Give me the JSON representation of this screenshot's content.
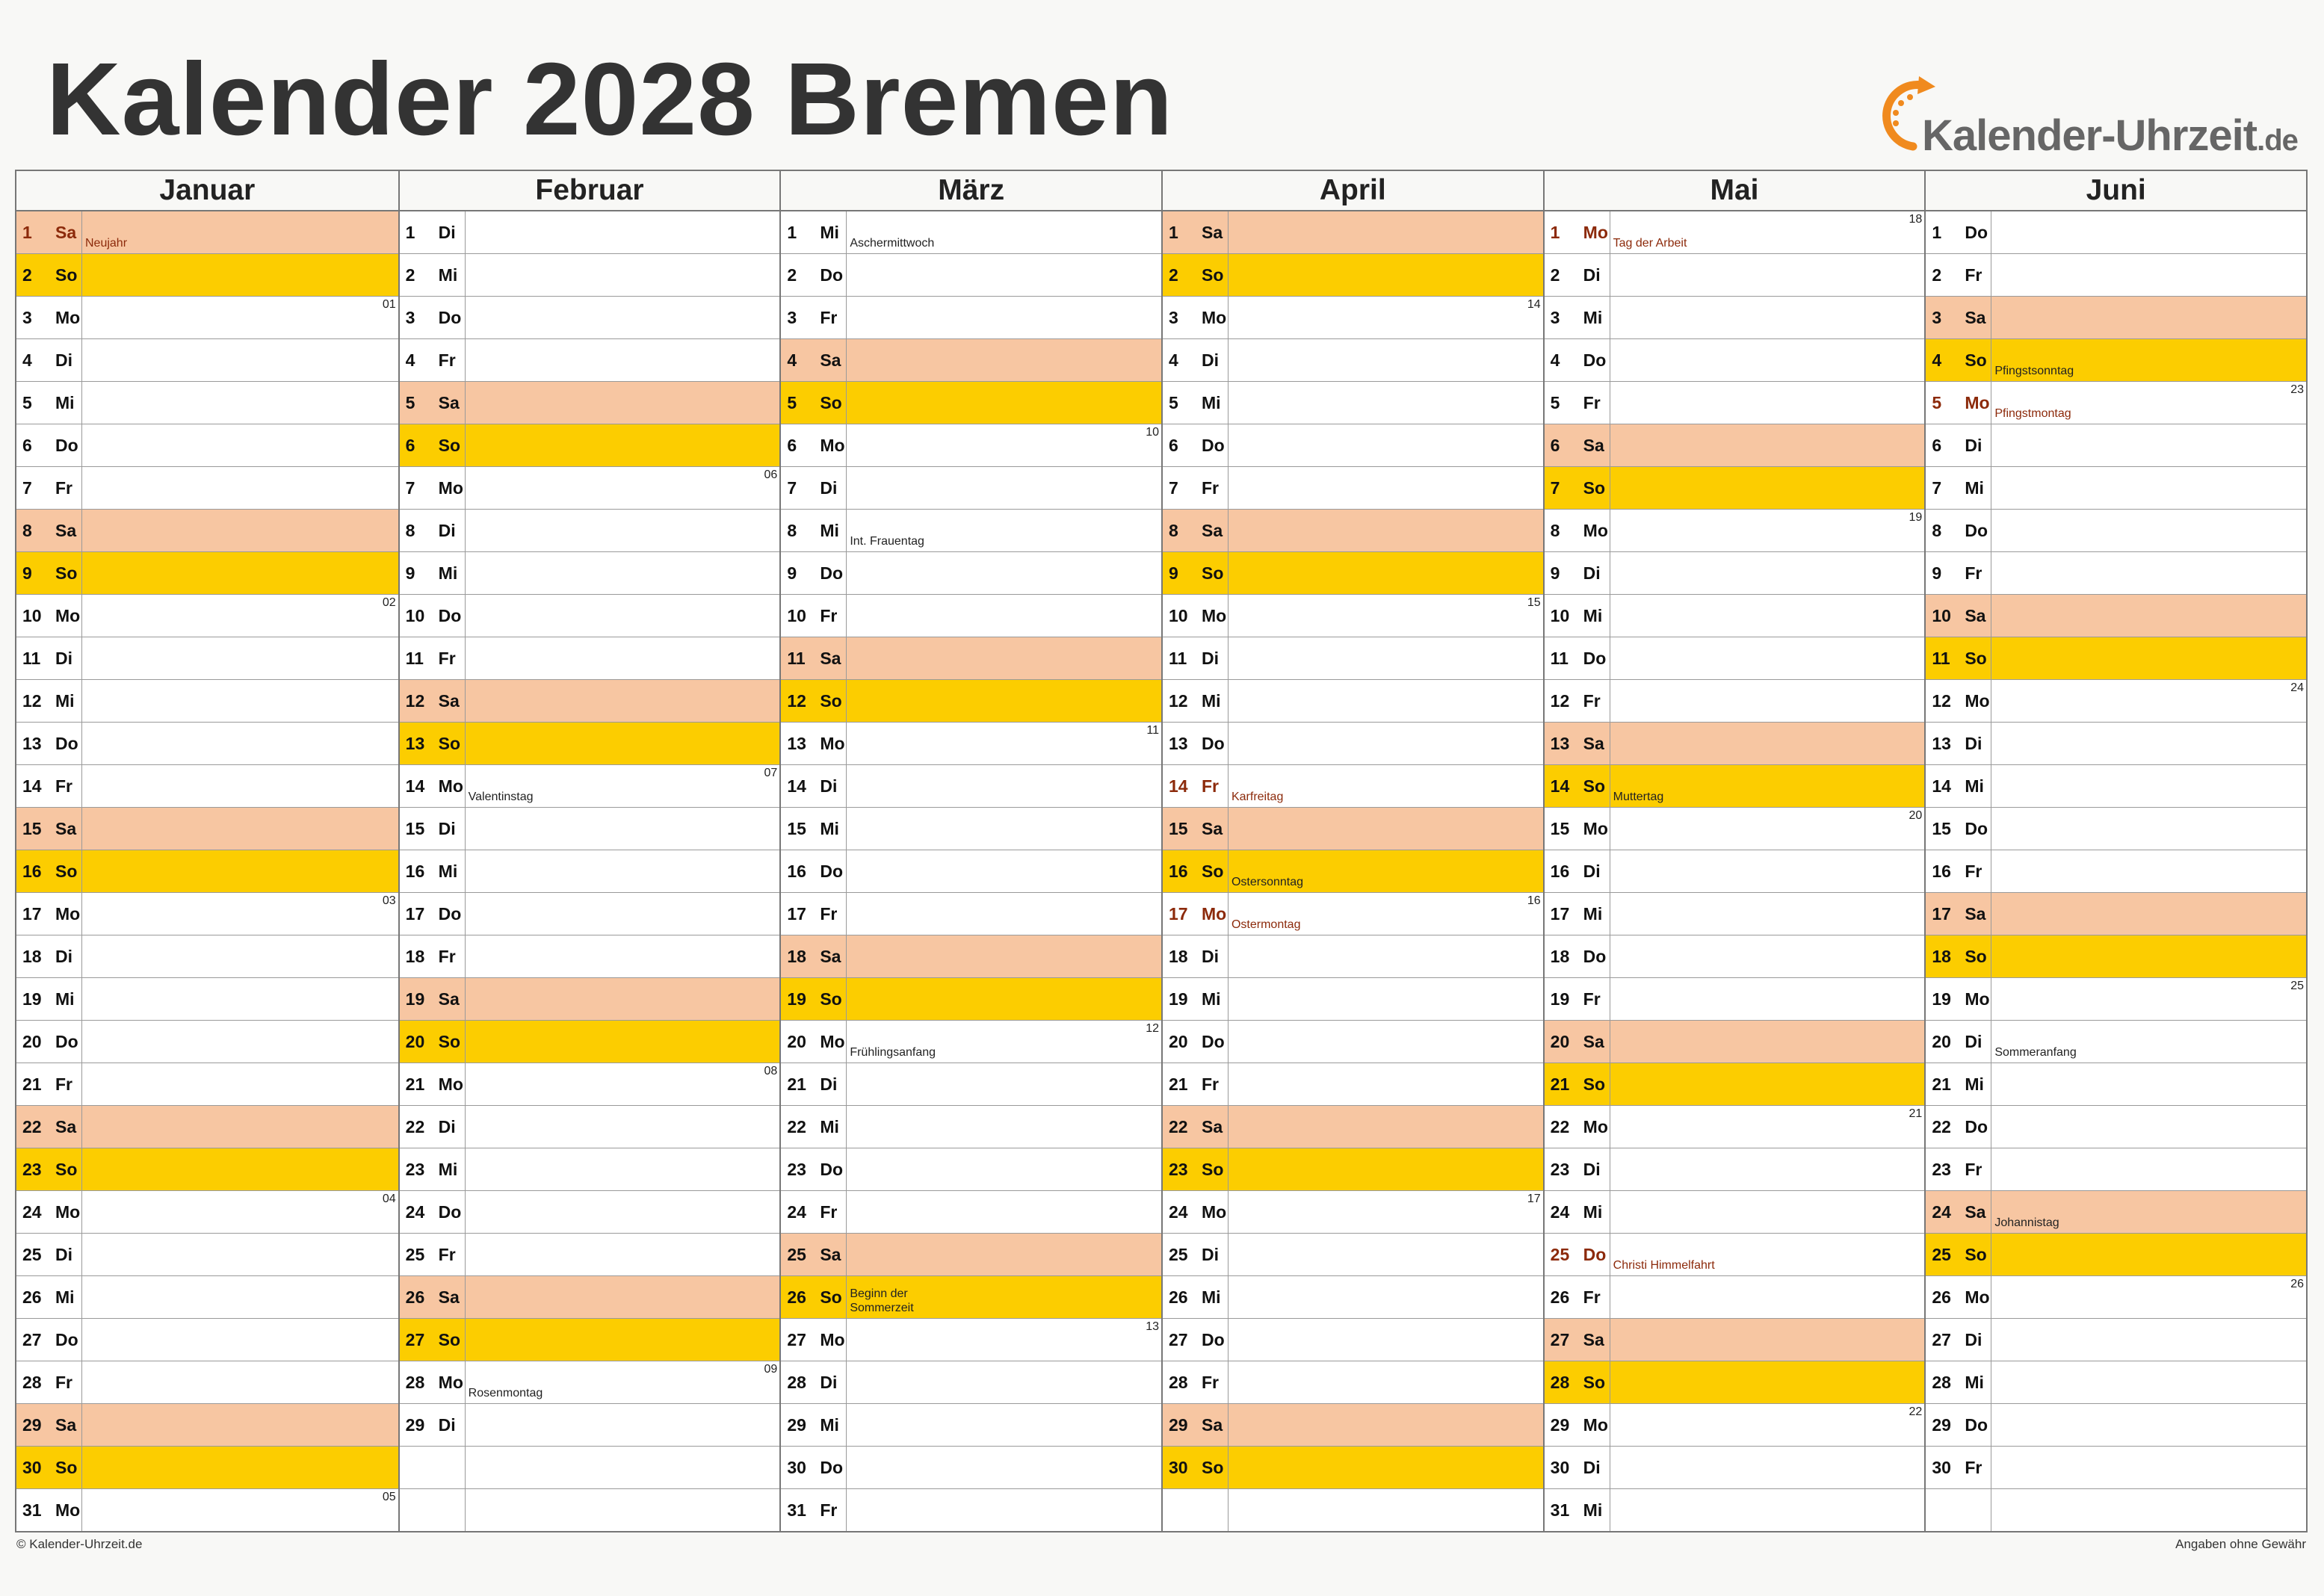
{
  "title": "Kalender 2028 Bremen",
  "logo": {
    "name": "Kalender-Uhrzeit",
    "tld": ".de"
  },
  "footer": {
    "left": "© Kalender-Uhrzeit.de",
    "right": "Angaben ohne Gewähr"
  },
  "colors": {
    "saturday": "#f7c6a2",
    "sunday": "#fccd00",
    "holiday_text": "#8c2a0b",
    "logo_orange": "#f08a1e"
  },
  "months": [
    {
      "name": "Januar",
      "days": [
        {
          "d": "1",
          "wd": "Sa",
          "type": "sat",
          "hol": true,
          "note": "Neujahr"
        },
        {
          "d": "2",
          "wd": "So",
          "type": "sun"
        },
        {
          "d": "3",
          "wd": "Mo",
          "kw": "01"
        },
        {
          "d": "4",
          "wd": "Di"
        },
        {
          "d": "5",
          "wd": "Mi"
        },
        {
          "d": "6",
          "wd": "Do"
        },
        {
          "d": "7",
          "wd": "Fr"
        },
        {
          "d": "8",
          "wd": "Sa",
          "type": "sat"
        },
        {
          "d": "9",
          "wd": "So",
          "type": "sun"
        },
        {
          "d": "10",
          "wd": "Mo",
          "kw": "02"
        },
        {
          "d": "11",
          "wd": "Di"
        },
        {
          "d": "12",
          "wd": "Mi"
        },
        {
          "d": "13",
          "wd": "Do"
        },
        {
          "d": "14",
          "wd": "Fr"
        },
        {
          "d": "15",
          "wd": "Sa",
          "type": "sat"
        },
        {
          "d": "16",
          "wd": "So",
          "type": "sun"
        },
        {
          "d": "17",
          "wd": "Mo",
          "kw": "03"
        },
        {
          "d": "18",
          "wd": "Di"
        },
        {
          "d": "19",
          "wd": "Mi"
        },
        {
          "d": "20",
          "wd": "Do"
        },
        {
          "d": "21",
          "wd": "Fr"
        },
        {
          "d": "22",
          "wd": "Sa",
          "type": "sat"
        },
        {
          "d": "23",
          "wd": "So",
          "type": "sun"
        },
        {
          "d": "24",
          "wd": "Mo",
          "kw": "04"
        },
        {
          "d": "25",
          "wd": "Di"
        },
        {
          "d": "26",
          "wd": "Mi"
        },
        {
          "d": "27",
          "wd": "Do"
        },
        {
          "d": "28",
          "wd": "Fr"
        },
        {
          "d": "29",
          "wd": "Sa",
          "type": "sat"
        },
        {
          "d": "30",
          "wd": "So",
          "type": "sun"
        },
        {
          "d": "31",
          "wd": "Mo",
          "kw": "05"
        }
      ]
    },
    {
      "name": "Februar",
      "days": [
        {
          "d": "1",
          "wd": "Di"
        },
        {
          "d": "2",
          "wd": "Mi"
        },
        {
          "d": "3",
          "wd": "Do"
        },
        {
          "d": "4",
          "wd": "Fr"
        },
        {
          "d": "5",
          "wd": "Sa",
          "type": "sat"
        },
        {
          "d": "6",
          "wd": "So",
          "type": "sun"
        },
        {
          "d": "7",
          "wd": "Mo",
          "kw": "06"
        },
        {
          "d": "8",
          "wd": "Di"
        },
        {
          "d": "9",
          "wd": "Mi"
        },
        {
          "d": "10",
          "wd": "Do"
        },
        {
          "d": "11",
          "wd": "Fr"
        },
        {
          "d": "12",
          "wd": "Sa",
          "type": "sat"
        },
        {
          "d": "13",
          "wd": "So",
          "type": "sun"
        },
        {
          "d": "14",
          "wd": "Mo",
          "kw": "07",
          "note": "Valentinstag"
        },
        {
          "d": "15",
          "wd": "Di"
        },
        {
          "d": "16",
          "wd": "Mi"
        },
        {
          "d": "17",
          "wd": "Do"
        },
        {
          "d": "18",
          "wd": "Fr"
        },
        {
          "d": "19",
          "wd": "Sa",
          "type": "sat"
        },
        {
          "d": "20",
          "wd": "So",
          "type": "sun"
        },
        {
          "d": "21",
          "wd": "Mo",
          "kw": "08"
        },
        {
          "d": "22",
          "wd": "Di"
        },
        {
          "d": "23",
          "wd": "Mi"
        },
        {
          "d": "24",
          "wd": "Do"
        },
        {
          "d": "25",
          "wd": "Fr"
        },
        {
          "d": "26",
          "wd": "Sa",
          "type": "sat"
        },
        {
          "d": "27",
          "wd": "So",
          "type": "sun"
        },
        {
          "d": "28",
          "wd": "Mo",
          "kw": "09",
          "note": "Rosenmontag"
        },
        {
          "d": "29",
          "wd": "Di"
        },
        {
          "d": "",
          "wd": "",
          "type": "empty"
        },
        {
          "d": "",
          "wd": "",
          "type": "empty"
        }
      ]
    },
    {
      "name": "März",
      "days": [
        {
          "d": "1",
          "wd": "Mi",
          "note": "Aschermittwoch"
        },
        {
          "d": "2",
          "wd": "Do"
        },
        {
          "d": "3",
          "wd": "Fr"
        },
        {
          "d": "4",
          "wd": "Sa",
          "type": "sat"
        },
        {
          "d": "5",
          "wd": "So",
          "type": "sun"
        },
        {
          "d": "6",
          "wd": "Mo",
          "kw": "10"
        },
        {
          "d": "7",
          "wd": "Di"
        },
        {
          "d": "8",
          "wd": "Mi",
          "note": "Int. Frauentag"
        },
        {
          "d": "9",
          "wd": "Do"
        },
        {
          "d": "10",
          "wd": "Fr"
        },
        {
          "d": "11",
          "wd": "Sa",
          "type": "sat"
        },
        {
          "d": "12",
          "wd": "So",
          "type": "sun"
        },
        {
          "d": "13",
          "wd": "Mo",
          "kw": "11"
        },
        {
          "d": "14",
          "wd": "Di"
        },
        {
          "d": "15",
          "wd": "Mi"
        },
        {
          "d": "16",
          "wd": "Do"
        },
        {
          "d": "17",
          "wd": "Fr"
        },
        {
          "d": "18",
          "wd": "Sa",
          "type": "sat"
        },
        {
          "d": "19",
          "wd": "So",
          "type": "sun"
        },
        {
          "d": "20",
          "wd": "Mo",
          "kw": "12",
          "note": "Frühlingsanfang"
        },
        {
          "d": "21",
          "wd": "Di"
        },
        {
          "d": "22",
          "wd": "Mi"
        },
        {
          "d": "23",
          "wd": "Do"
        },
        {
          "d": "24",
          "wd": "Fr"
        },
        {
          "d": "25",
          "wd": "Sa",
          "type": "sat"
        },
        {
          "d": "26",
          "wd": "So",
          "type": "sun",
          "note": "Beginn der Sommerzeit",
          "two": true
        },
        {
          "d": "27",
          "wd": "Mo",
          "kw": "13"
        },
        {
          "d": "28",
          "wd": "Di"
        },
        {
          "d": "29",
          "wd": "Mi"
        },
        {
          "d": "30",
          "wd": "Do"
        },
        {
          "d": "31",
          "wd": "Fr"
        }
      ]
    },
    {
      "name": "April",
      "days": [
        {
          "d": "1",
          "wd": "Sa",
          "type": "sat"
        },
        {
          "d": "2",
          "wd": "So",
          "type": "sun"
        },
        {
          "d": "3",
          "wd": "Mo",
          "kw": "14"
        },
        {
          "d": "4",
          "wd": "Di"
        },
        {
          "d": "5",
          "wd": "Mi"
        },
        {
          "d": "6",
          "wd": "Do"
        },
        {
          "d": "7",
          "wd": "Fr"
        },
        {
          "d": "8",
          "wd": "Sa",
          "type": "sat"
        },
        {
          "d": "9",
          "wd": "So",
          "type": "sun"
        },
        {
          "d": "10",
          "wd": "Mo",
          "kw": "15"
        },
        {
          "d": "11",
          "wd": "Di"
        },
        {
          "d": "12",
          "wd": "Mi"
        },
        {
          "d": "13",
          "wd": "Do"
        },
        {
          "d": "14",
          "wd": "Fr",
          "hol": true,
          "note": "Karfreitag"
        },
        {
          "d": "15",
          "wd": "Sa",
          "type": "sat"
        },
        {
          "d": "16",
          "wd": "So",
          "type": "sun",
          "note": "Ostersonntag"
        },
        {
          "d": "17",
          "wd": "Mo",
          "kw": "16",
          "hol": true,
          "note": "Ostermontag"
        },
        {
          "d": "18",
          "wd": "Di"
        },
        {
          "d": "19",
          "wd": "Mi"
        },
        {
          "d": "20",
          "wd": "Do"
        },
        {
          "d": "21",
          "wd": "Fr"
        },
        {
          "d": "22",
          "wd": "Sa",
          "type": "sat"
        },
        {
          "d": "23",
          "wd": "So",
          "type": "sun"
        },
        {
          "d": "24",
          "wd": "Mo",
          "kw": "17"
        },
        {
          "d": "25",
          "wd": "Di"
        },
        {
          "d": "26",
          "wd": "Mi"
        },
        {
          "d": "27",
          "wd": "Do"
        },
        {
          "d": "28",
          "wd": "Fr"
        },
        {
          "d": "29",
          "wd": "Sa",
          "type": "sat"
        },
        {
          "d": "30",
          "wd": "So",
          "type": "sun"
        },
        {
          "d": "",
          "wd": "",
          "type": "empty"
        }
      ]
    },
    {
      "name": "Mai",
      "days": [
        {
          "d": "1",
          "wd": "Mo",
          "kw": "18",
          "hol": true,
          "note": "Tag der Arbeit"
        },
        {
          "d": "2",
          "wd": "Di"
        },
        {
          "d": "3",
          "wd": "Mi"
        },
        {
          "d": "4",
          "wd": "Do"
        },
        {
          "d": "5",
          "wd": "Fr"
        },
        {
          "d": "6",
          "wd": "Sa",
          "type": "sat"
        },
        {
          "d": "7",
          "wd": "So",
          "type": "sun"
        },
        {
          "d": "8",
          "wd": "Mo",
          "kw": "19"
        },
        {
          "d": "9",
          "wd": "Di"
        },
        {
          "d": "10",
          "wd": "Mi"
        },
        {
          "d": "11",
          "wd": "Do"
        },
        {
          "d": "12",
          "wd": "Fr"
        },
        {
          "d": "13",
          "wd": "Sa",
          "type": "sat"
        },
        {
          "d": "14",
          "wd": "So",
          "type": "sun",
          "note": "Muttertag"
        },
        {
          "d": "15",
          "wd": "Mo",
          "kw": "20"
        },
        {
          "d": "16",
          "wd": "Di"
        },
        {
          "d": "17",
          "wd": "Mi"
        },
        {
          "d": "18",
          "wd": "Do"
        },
        {
          "d": "19",
          "wd": "Fr"
        },
        {
          "d": "20",
          "wd": "Sa",
          "type": "sat"
        },
        {
          "d": "21",
          "wd": "So",
          "type": "sun"
        },
        {
          "d": "22",
          "wd": "Mo",
          "kw": "21"
        },
        {
          "d": "23",
          "wd": "Di"
        },
        {
          "d": "24",
          "wd": "Mi"
        },
        {
          "d": "25",
          "wd": "Do",
          "hol": true,
          "note": "Christi Himmelfahrt"
        },
        {
          "d": "26",
          "wd": "Fr"
        },
        {
          "d": "27",
          "wd": "Sa",
          "type": "sat"
        },
        {
          "d": "28",
          "wd": "So",
          "type": "sun"
        },
        {
          "d": "29",
          "wd": "Mo",
          "kw": "22"
        },
        {
          "d": "30",
          "wd": "Di"
        },
        {
          "d": "31",
          "wd": "Mi"
        }
      ]
    },
    {
      "name": "Juni",
      "days": [
        {
          "d": "1",
          "wd": "Do"
        },
        {
          "d": "2",
          "wd": "Fr"
        },
        {
          "d": "3",
          "wd": "Sa",
          "type": "sat"
        },
        {
          "d": "4",
          "wd": "So",
          "type": "sun",
          "note": "Pfingstsonntag"
        },
        {
          "d": "5",
          "wd": "Mo",
          "kw": "23",
          "hol": true,
          "note": "Pfingstmontag"
        },
        {
          "d": "6",
          "wd": "Di"
        },
        {
          "d": "7",
          "wd": "Mi"
        },
        {
          "d": "8",
          "wd": "Do"
        },
        {
          "d": "9",
          "wd": "Fr"
        },
        {
          "d": "10",
          "wd": "Sa",
          "type": "sat"
        },
        {
          "d": "11",
          "wd": "So",
          "type": "sun"
        },
        {
          "d": "12",
          "wd": "Mo",
          "kw": "24"
        },
        {
          "d": "13",
          "wd": "Di"
        },
        {
          "d": "14",
          "wd": "Mi"
        },
        {
          "d": "15",
          "wd": "Do"
        },
        {
          "d": "16",
          "wd": "Fr"
        },
        {
          "d": "17",
          "wd": "Sa",
          "type": "sat"
        },
        {
          "d": "18",
          "wd": "So",
          "type": "sun"
        },
        {
          "d": "19",
          "wd": "Mo",
          "kw": "25"
        },
        {
          "d": "20",
          "wd": "Di",
          "note": "Sommeranfang"
        },
        {
          "d": "21",
          "wd": "Mi"
        },
        {
          "d": "22",
          "wd": "Do"
        },
        {
          "d": "23",
          "wd": "Fr"
        },
        {
          "d": "24",
          "wd": "Sa",
          "type": "sat",
          "note": "Johannistag"
        },
        {
          "d": "25",
          "wd": "So",
          "type": "sun"
        },
        {
          "d": "26",
          "wd": "Mo",
          "kw": "26"
        },
        {
          "d": "27",
          "wd": "Di"
        },
        {
          "d": "28",
          "wd": "Mi"
        },
        {
          "d": "29",
          "wd": "Do"
        },
        {
          "d": "30",
          "wd": "Fr"
        },
        {
          "d": "",
          "wd": "",
          "type": "empty"
        }
      ]
    }
  ]
}
